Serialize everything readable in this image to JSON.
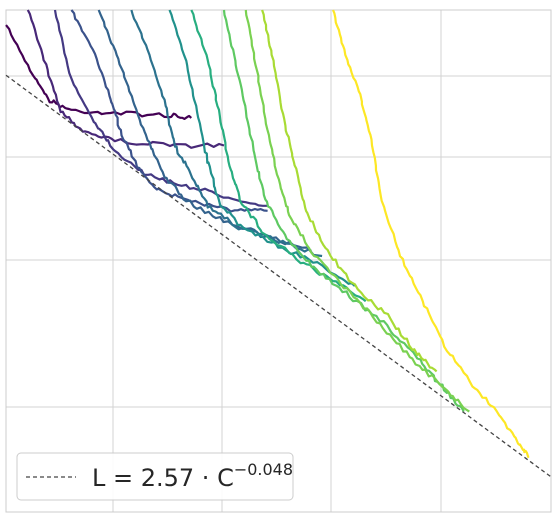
{
  "chart_data": {
    "type": "line",
    "title": "",
    "xlabel": "",
    "ylabel": "",
    "xscale": "log",
    "yscale": "log",
    "grid": true,
    "legend": {
      "placement": "bottom-left",
      "entries": [
        {
          "label_main": "L = 2.57 · C",
          "label_exp": "−0.048",
          "style": "dashed",
          "color": "#444444"
        }
      ]
    },
    "fit": {
      "a": 2.57,
      "b": -0.048
    },
    "colormap": "viridis",
    "series": [
      {
        "color": "#440154",
        "points": [
          [
            0.0,
            0.03
          ],
          [
            0.05,
            0.13
          ],
          [
            0.08,
            0.18
          ],
          [
            0.12,
            0.2
          ],
          [
            0.2,
            0.205
          ],
          [
            0.3,
            0.21
          ],
          [
            0.34,
            0.215
          ]
        ]
      },
      {
        "color": "#482878",
        "points": [
          [
            0.04,
            0.0
          ],
          [
            0.07,
            0.1
          ],
          [
            0.1,
            0.2
          ],
          [
            0.14,
            0.24
          ],
          [
            0.2,
            0.26
          ],
          [
            0.3,
            0.27
          ],
          [
            0.4,
            0.27
          ]
        ]
      },
      {
        "color": "#443983",
        "points": [
          [
            0.09,
            0.0
          ],
          [
            0.12,
            0.14
          ],
          [
            0.16,
            0.22
          ],
          [
            0.2,
            0.28
          ],
          [
            0.26,
            0.33
          ],
          [
            0.33,
            0.35
          ],
          [
            0.4,
            0.37
          ],
          [
            0.48,
            0.39
          ]
        ]
      },
      {
        "color": "#3b528b",
        "points": [
          [
            0.12,
            0.0
          ],
          [
            0.16,
            0.08
          ],
          [
            0.19,
            0.17
          ],
          [
            0.21,
            0.24
          ],
          [
            0.24,
            0.31
          ],
          [
            0.28,
            0.36
          ],
          [
            0.34,
            0.38
          ],
          [
            0.42,
            0.4
          ],
          [
            0.48,
            0.4
          ]
        ]
      },
      {
        "color": "#33638d",
        "points": [
          [
            0.17,
            0.0
          ],
          [
            0.2,
            0.08
          ],
          [
            0.23,
            0.17
          ],
          [
            0.26,
            0.26
          ],
          [
            0.29,
            0.33
          ],
          [
            0.33,
            0.38
          ],
          [
            0.4,
            0.42
          ],
          [
            0.48,
            0.45
          ],
          [
            0.56,
            0.48
          ]
        ]
      },
      {
        "color": "#2c728e",
        "points": [
          [
            0.23,
            0.0
          ],
          [
            0.26,
            0.08
          ],
          [
            0.29,
            0.18
          ],
          [
            0.31,
            0.27
          ],
          [
            0.34,
            0.33
          ],
          [
            0.37,
            0.39
          ],
          [
            0.42,
            0.43
          ],
          [
            0.5,
            0.46
          ],
          [
            0.58,
            0.49
          ]
        ]
      },
      {
        "color": "#21918c",
        "points": [
          [
            0.3,
            0.0
          ],
          [
            0.33,
            0.1
          ],
          [
            0.35,
            0.2
          ],
          [
            0.37,
            0.3
          ],
          [
            0.39,
            0.38
          ],
          [
            0.43,
            0.43
          ],
          [
            0.5,
            0.47
          ],
          [
            0.58,
            0.51
          ],
          [
            0.64,
            0.55
          ]
        ]
      },
      {
        "color": "#28ae80",
        "points": [
          [
            0.34,
            0.0
          ],
          [
            0.37,
            0.1
          ],
          [
            0.39,
            0.2
          ],
          [
            0.41,
            0.31
          ],
          [
            0.43,
            0.38
          ],
          [
            0.47,
            0.44
          ],
          [
            0.54,
            0.5
          ],
          [
            0.6,
            0.54
          ],
          [
            0.66,
            0.58
          ]
        ]
      },
      {
        "color": "#5ec962",
        "points": [
          [
            0.4,
            0.0
          ],
          [
            0.42,
            0.1
          ],
          [
            0.44,
            0.2
          ],
          [
            0.46,
            0.31
          ],
          [
            0.48,
            0.39
          ],
          [
            0.52,
            0.46
          ],
          [
            0.57,
            0.52
          ],
          [
            0.63,
            0.57
          ],
          [
            0.7,
            0.63
          ],
          [
            0.76,
            0.7
          ],
          [
            0.8,
            0.75
          ],
          [
            0.84,
            0.8
          ]
        ]
      },
      {
        "color": "#7ad151",
        "points": [
          [
            0.44,
            0.0
          ],
          [
            0.46,
            0.12
          ],
          [
            0.48,
            0.24
          ],
          [
            0.5,
            0.34
          ],
          [
            0.52,
            0.41
          ],
          [
            0.56,
            0.48
          ],
          [
            0.62,
            0.55
          ],
          [
            0.68,
            0.62
          ],
          [
            0.74,
            0.69
          ],
          [
            0.8,
            0.75
          ],
          [
            0.85,
            0.8
          ]
        ]
      },
      {
        "color": "#a8db34",
        "points": [
          [
            0.47,
            0.0
          ],
          [
            0.49,
            0.1
          ],
          [
            0.51,
            0.22
          ],
          [
            0.53,
            0.31
          ],
          [
            0.55,
            0.4
          ],
          [
            0.59,
            0.48
          ],
          [
            0.64,
            0.55
          ],
          [
            0.7,
            0.61
          ],
          [
            0.75,
            0.68
          ],
          [
            0.79,
            0.72
          ]
        ]
      },
      {
        "color": "#fde725",
        "points": [
          [
            0.6,
            0.0
          ],
          [
            0.62,
            0.08
          ],
          [
            0.65,
            0.17
          ],
          [
            0.67,
            0.26
          ],
          [
            0.69,
            0.38
          ],
          [
            0.72,
            0.48
          ],
          [
            0.76,
            0.57
          ],
          [
            0.8,
            0.66
          ],
          [
            0.85,
            0.74
          ],
          [
            0.9,
            0.8
          ],
          [
            0.94,
            0.86
          ],
          [
            0.96,
            0.89
          ]
        ]
      }
    ]
  }
}
